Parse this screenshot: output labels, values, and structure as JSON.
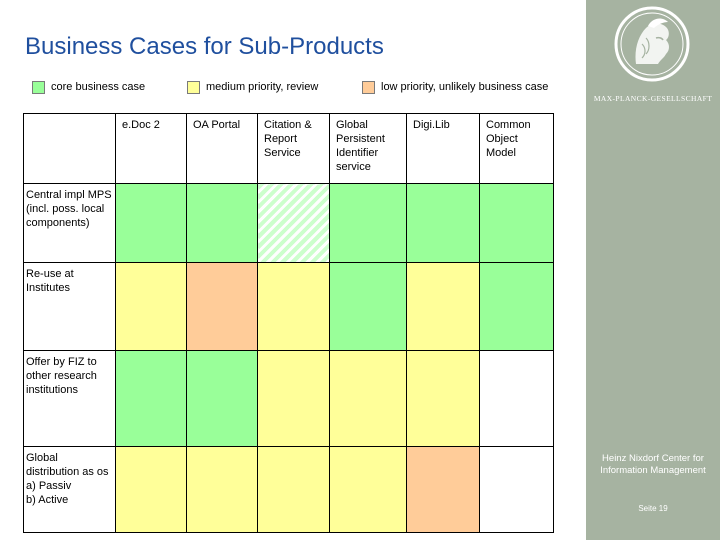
{
  "title": "Business Cases for Sub-Products",
  "legend": [
    {
      "label": "core business case",
      "color": "#99ff99"
    },
    {
      "label": "medium priority, review",
      "color": "#ffff99"
    },
    {
      "label": "low priority, unlikely business case",
      "color": "#ffcc99"
    }
  ],
  "columns": [
    "e.Doc 2",
    "OA Portal",
    "Citation & Report Service",
    "Global Persistent Identifier service",
    "Digi.Lib",
    "Common Object Model"
  ],
  "rows": [
    {
      "label": "Central impl MPS (incl. poss. local components)",
      "cells": [
        "green",
        "green",
        "hatched",
        "green",
        "green",
        "green"
      ]
    },
    {
      "label": "Re-use at Institutes",
      "cells": [
        "yellow",
        "orange",
        "yellow",
        "green",
        "yellow",
        "green"
      ]
    },
    {
      "label": "Offer by FIZ to other research institutions",
      "cells": [
        "green",
        "green",
        "yellow",
        "yellow",
        "yellow",
        "white"
      ]
    },
    {
      "label": "Global distribution as os\na) Passiv\nb) Active",
      "cells": [
        "yellow",
        "yellow",
        "yellow",
        "yellow",
        "orange",
        "white"
      ]
    }
  ],
  "colors": {
    "green": "#99ff99",
    "yellow": "#ffff99",
    "orange": "#ffcc99",
    "hatched": "#ccffcc",
    "white": "#ffffff",
    "title": "#1f4f9e",
    "band": "#a6b3a1"
  },
  "branding": {
    "logo_icon": "minerva-seal-icon",
    "logo_text": "MAX-PLANCK-GESELLSCHAFT",
    "center_name": "Heinz Nixdorf Center for Information Management",
    "page": "Seite 19"
  }
}
